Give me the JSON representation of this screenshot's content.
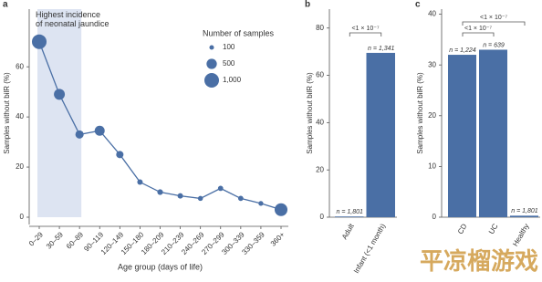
{
  "chart_data": [
    {
      "type": "bubble-line",
      "panel": "a",
      "color": "#4a6fa5",
      "annotation": "Highest incidence of neonatal jaundice",
      "highlight": [
        0,
        2
      ],
      "categories": [
        "0–29",
        "30–59",
        "60–89",
        "90–119",
        "120–149",
        "150–180",
        "180–209",
        "210–239",
        "240–269",
        "270–299",
        "300–339",
        "330–359",
        "360+"
      ],
      "values": [
        70,
        49,
        33,
        34.5,
        25,
        14,
        10,
        8.5,
        7.5,
        11.5,
        7.5,
        5.5,
        3
      ],
      "sizes": [
        1000,
        560,
        320,
        470,
        250,
        140,
        150,
        140,
        120,
        130,
        130,
        110,
        770
      ],
      "size_legend": {
        "title": "Number of samples",
        "values": [
          100,
          500,
          {
            "value": 1000,
            "label": "1,000"
          }
        ]
      },
      "xlabel": "Age group (days of life)",
      "ylabel": "Samples without bilR (%)",
      "ylim": [
        0,
        83
      ],
      "yticks": [
        0,
        20,
        40,
        60
      ]
    },
    {
      "type": "bar",
      "panel": "b",
      "color": "#4a6fa5",
      "categories": [
        "Adult",
        "Infant (<1 month)"
      ],
      "values": [
        0.3,
        69.5
      ],
      "value_labels": [
        "n = 1,801",
        "n = 1,341"
      ],
      "comparisons": [
        {
          "label": "<1 × 10⁻⁷",
          "pair": [
            0,
            1
          ]
        }
      ],
      "ylabel": "Samples without bilR (%)",
      "ylim": [
        0,
        88
      ],
      "yticks": [
        0,
        20,
        40,
        60,
        80
      ]
    },
    {
      "type": "bar",
      "panel": "c",
      "color": "#4a6fa5",
      "categories": [
        "CD",
        "UC",
        "Healthy"
      ],
      "values": [
        32,
        33,
        0.3
      ],
      "value_labels": [
        "n = 1,224",
        "n = 639",
        "n = 1,801"
      ],
      "comparisons": [
        {
          "label": "<1 × 10⁻⁷",
          "pair": [
            0,
            1
          ]
        },
        {
          "label": "<1 × 10⁻⁷",
          "pair": [
            0,
            2
          ]
        }
      ],
      "ylabel": "Samples without bilR (%)",
      "ylim": [
        0,
        41
      ],
      "yticks": [
        0,
        10,
        20,
        30,
        40
      ]
    }
  ],
  "watermark": "平凉榴游戏"
}
